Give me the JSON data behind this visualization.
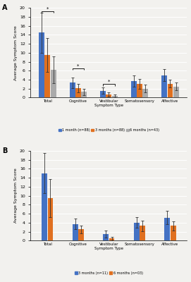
{
  "panel_A": {
    "categories": [
      "Total",
      "Cognitive",
      "Vestibular",
      "Somatosensory",
      "Affective"
    ],
    "series": [
      {
        "label": "1 month (n=88)",
        "color": "#4472C4",
        "values": [
          14.5,
          3.3,
          1.5,
          3.7,
          5.0
        ],
        "errors": [
          4.5,
          1.2,
          0.7,
          1.2,
          1.3
        ]
      },
      {
        "label": "3 months (n=88)",
        "color": "#E07020",
        "values": [
          9.5,
          2.1,
          0.7,
          3.0,
          3.1
        ],
        "errors": [
          3.8,
          0.9,
          0.4,
          1.1,
          0.9
        ]
      },
      {
        "label": "6 months (n=43)",
        "color": "#AAAAAA",
        "values": [
          6.2,
          1.3,
          0.4,
          2.0,
          2.5
        ],
        "errors": [
          3.0,
          0.7,
          0.3,
          0.9,
          0.8
        ]
      }
    ],
    "ylim": [
      0,
      20
    ],
    "yticks": [
      0,
      2,
      4,
      6,
      8,
      10,
      12,
      14,
      16,
      18,
      20
    ],
    "ylabel": "Average Symptom Score",
    "xlabel": "Symptom Type",
    "panel_label": "A",
    "sig_brackets": [
      {
        "group": 0,
        "bars": [
          0,
          2
        ],
        "y": 19.2,
        "label": "*"
      },
      {
        "group": 1,
        "bars": [
          0,
          2
        ],
        "y": 6.5,
        "label": "*"
      },
      {
        "group": 2,
        "bars": [
          0,
          2
        ],
        "y": 3.0,
        "label": "*"
      }
    ]
  },
  "panel_B": {
    "categories": [
      "Total",
      "Cognitive",
      "Vestibular",
      "Somatosensory",
      "Affective"
    ],
    "series": [
      {
        "label": "3 months (n=11)",
        "color": "#4472C4",
        "values": [
          15.0,
          3.7,
          1.5,
          4.0,
          5.1
        ],
        "errors": [
          4.5,
          1.2,
          0.8,
          1.2,
          1.5
        ]
      },
      {
        "label": "6 months (n=03)",
        "color": "#E07020",
        "values": [
          9.5,
          2.5,
          0.5,
          3.3,
          3.3
        ],
        "errors": [
          4.2,
          0.9,
          0.4,
          1.2,
          1.0
        ]
      }
    ],
    "ylim": [
      0,
      20
    ],
    "yticks": [
      0,
      2,
      4,
      6,
      8,
      10,
      12,
      14,
      16,
      18,
      20
    ],
    "ylabel": "Average Symptom Score",
    "xlabel": "Symptom Type",
    "panel_label": "B"
  },
  "background_color": "#F2F1EE",
  "bar_width": 0.18,
  "fig_width": 2.71,
  "fig_height": 4.0,
  "tick_fontsize": 4.5,
  "label_fontsize": 4.5,
  "cat_fontsize": 4.0,
  "legend_fontsize": 3.5,
  "panel_label_fontsize": 7
}
